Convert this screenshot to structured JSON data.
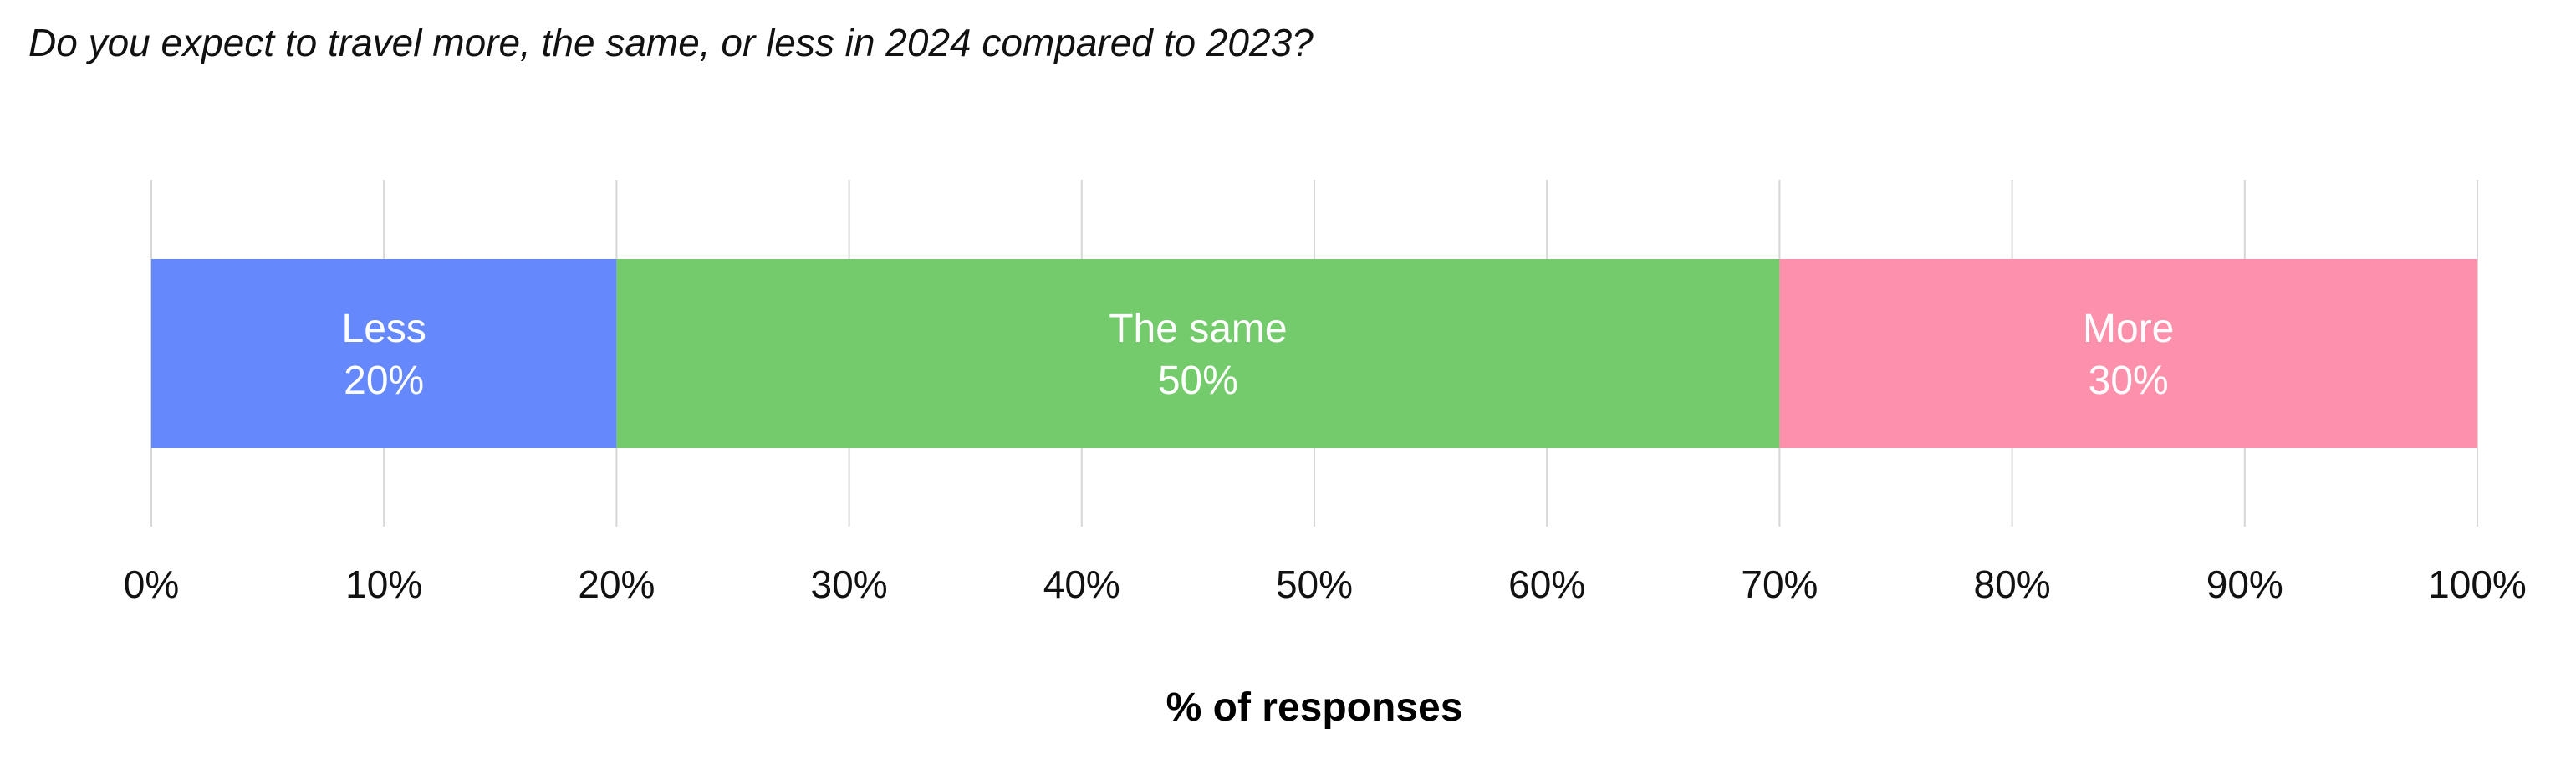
{
  "chart_data": {
    "type": "bar",
    "orientation": "horizontal",
    "stacked": true,
    "title": "Do you expect to travel more, the same, or less in 2024 compared to 2023?",
    "xlabel": "% of responses",
    "ylabel": "",
    "xlim": [
      0,
      100
    ],
    "grid": true,
    "legend": "none",
    "x_ticks": [
      "0%",
      "10%",
      "20%",
      "30%",
      "40%",
      "50%",
      "60%",
      "70%",
      "80%",
      "90%",
      "100%"
    ],
    "series": [
      {
        "name": "Less",
        "values": [
          20
        ],
        "label": "20%",
        "color": "#6589fc"
      },
      {
        "name": "The same",
        "values": [
          50
        ],
        "label": "50%",
        "color": "#74cb6b"
      },
      {
        "name": "More",
        "values": [
          30
        ],
        "label": "30%",
        "color": "#fd91ab"
      }
    ]
  }
}
